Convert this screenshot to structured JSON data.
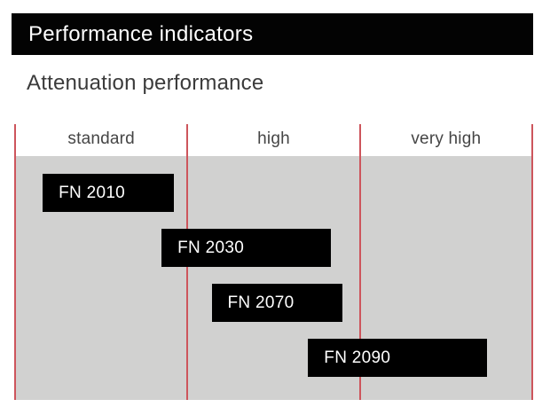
{
  "header": {
    "title": "Performance indicators",
    "subtitle": "Attenuation performance"
  },
  "chart_data": {
    "type": "bar",
    "orientation": "horizontal-range",
    "title": "Attenuation performance",
    "categories": [
      "standard",
      "high",
      "very high"
    ],
    "x_range": [
      0,
      3
    ],
    "xlabel": "",
    "ylabel": "",
    "legend": false,
    "grid": "red vertical column separators",
    "products": [
      {
        "name": "FN 2010",
        "start": 0.16,
        "end": 0.92,
        "row": 0
      },
      {
        "name": "FN 2030",
        "start": 0.85,
        "end": 1.83,
        "row": 1
      },
      {
        "name": "FN 2070",
        "start": 1.14,
        "end": 1.9,
        "row": 2
      },
      {
        "name": "FN 2090",
        "start": 1.7,
        "end": 2.74,
        "row": 3
      }
    ]
  },
  "colors": {
    "title_bar_bg": "#030303",
    "title_text": "#ffffff",
    "subtitle_text": "#3b3b3b",
    "category_text": "#454545",
    "plot_bg": "#d1d1d0",
    "grid_line": "#cd555c",
    "bar_bg": "#000000",
    "bar_text": "#ffffff"
  }
}
